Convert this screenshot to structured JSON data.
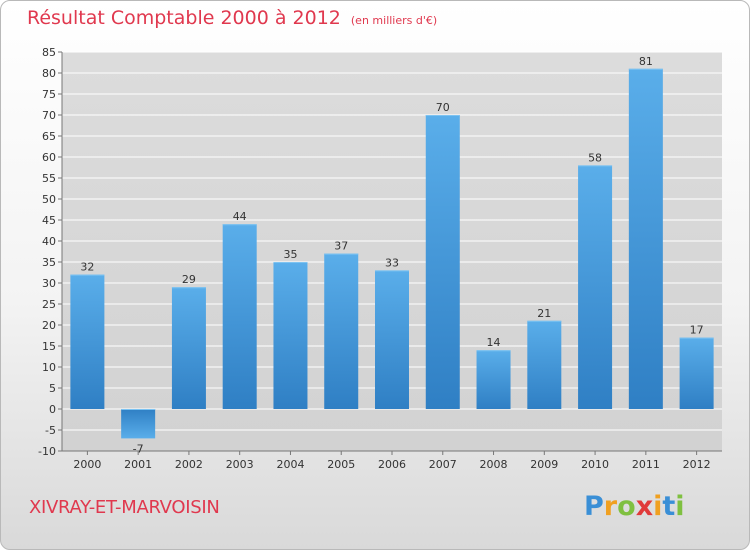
{
  "chart_data": {
    "type": "bar",
    "title": "Résultat Comptable 2000 à 2012",
    "subtitle": "(en milliers d'€)",
    "categories": [
      "2000",
      "2001",
      "2002",
      "2003",
      "2004",
      "2005",
      "2006",
      "2007",
      "2008",
      "2009",
      "2010",
      "2011",
      "2012"
    ],
    "values": [
      32,
      -7,
      29,
      44,
      35,
      37,
      33,
      70,
      14,
      21,
      58,
      81,
      17
    ],
    "ylim": [
      -10,
      85
    ],
    "yticks": [
      -10,
      -5,
      0,
      5,
      10,
      15,
      20,
      25,
      30,
      35,
      40,
      45,
      50,
      55,
      60,
      65,
      70,
      75,
      80,
      85
    ],
    "xlabel": "",
    "ylabel": "",
    "grid": true,
    "bar_color": "#4a9fe0"
  },
  "commune": "XIVRAY-ET-MARVOISIN",
  "brand": {
    "letters": [
      {
        "char": "P",
        "color": "#3a8fd6"
      },
      {
        "char": "r",
        "color": "#f0a020"
      },
      {
        "char": "o",
        "color": "#7fc040"
      },
      {
        "char": "x",
        "color": "#e03a3a"
      },
      {
        "char": "i",
        "color": "#f0a020"
      },
      {
        "char": "t",
        "color": "#3a8fd6"
      },
      {
        "char": "i",
        "color": "#7fc040"
      }
    ]
  }
}
